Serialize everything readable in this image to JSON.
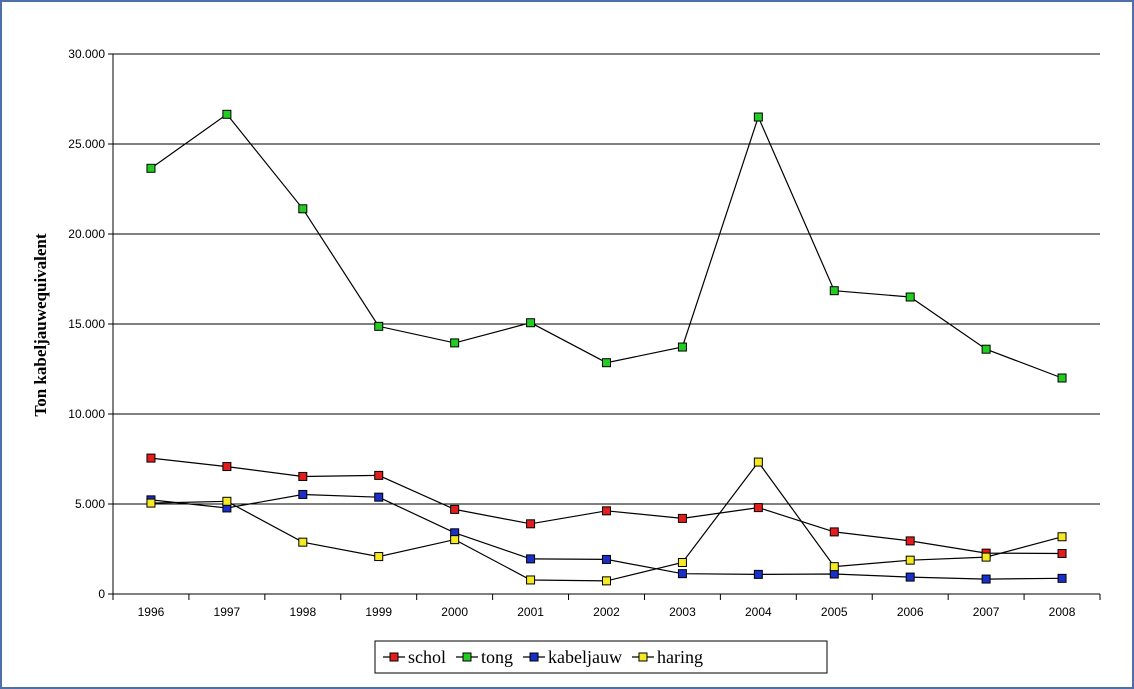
{
  "chart_data": {
    "type": "line",
    "title": "",
    "xlabel": "",
    "ylabel": "Ton kabeljauwequivalent",
    "categories": [
      "1996",
      "1997",
      "1998",
      "1999",
      "2000",
      "2001",
      "2002",
      "2003",
      "2004",
      "2005",
      "2006",
      "2007",
      "2008"
    ],
    "y_ticks": [
      "0",
      "5.000",
      "10.000",
      "15.000",
      "20.000",
      "25.000",
      "30.000"
    ],
    "ylim": [
      0,
      30000
    ],
    "grid": "horizontal",
    "legend": "bottom",
    "series": [
      {
        "name": "schol",
        "color": "#e31c1c",
        "values": [
          7550,
          7080,
          6530,
          6590,
          4700,
          3900,
          4620,
          4200,
          4800,
          3450,
          2950,
          2270,
          2250
        ]
      },
      {
        "name": "tong",
        "color": "#22cc22",
        "values": [
          23650,
          26650,
          21400,
          14870,
          13950,
          15070,
          12850,
          13720,
          26500,
          16850,
          16500,
          13600,
          12000
        ]
      },
      {
        "name": "kabeljauw",
        "color": "#1a2ec8",
        "values": [
          5230,
          4780,
          5530,
          5380,
          3400,
          1950,
          1920,
          1130,
          1090,
          1110,
          940,
          830,
          870
        ]
      },
      {
        "name": "haring",
        "color": "#f5ea22",
        "values": [
          5050,
          5150,
          2880,
          2080,
          3020,
          780,
          730,
          1750,
          7330,
          1520,
          1880,
          2050,
          3180
        ]
      }
    ]
  }
}
